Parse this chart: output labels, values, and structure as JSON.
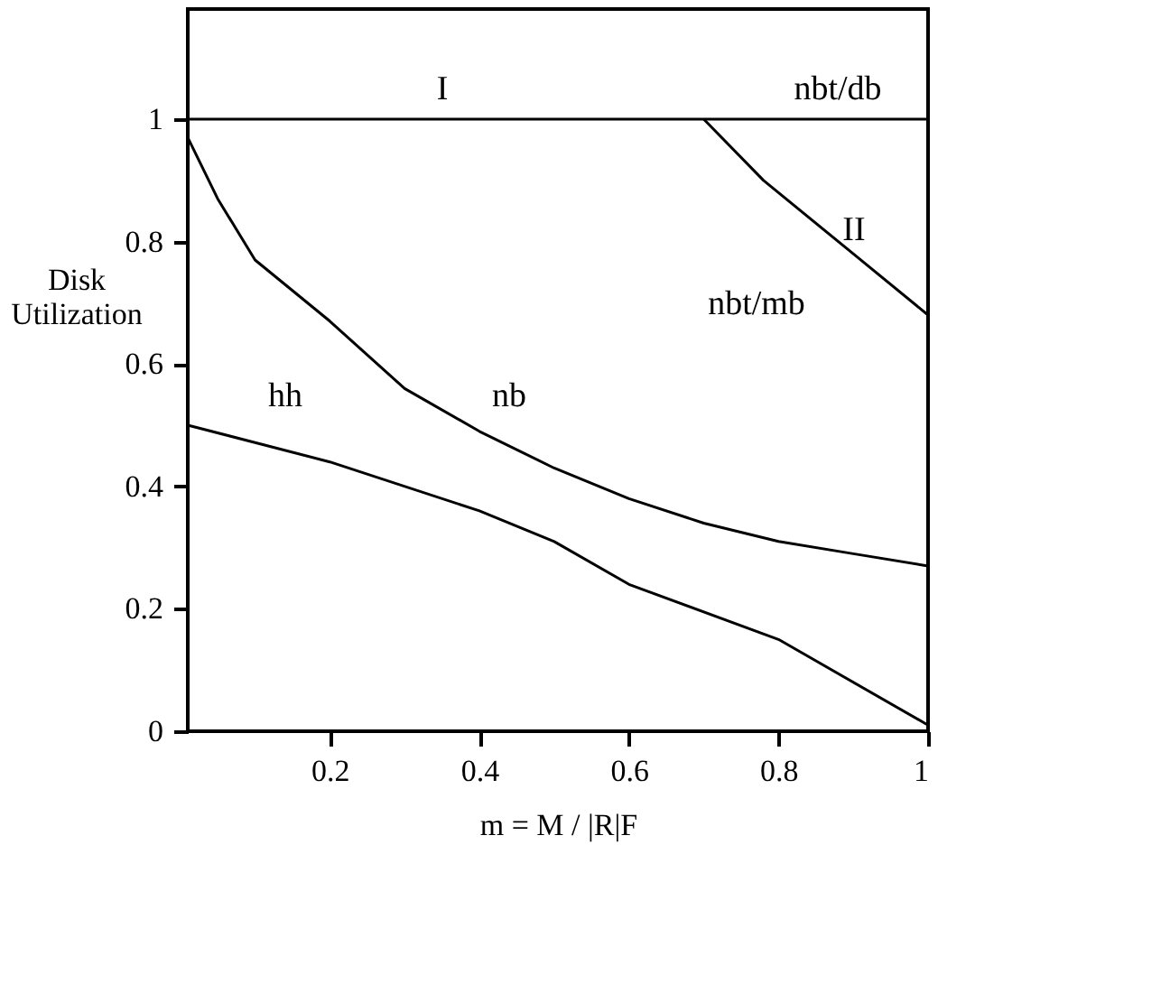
{
  "chart_data": {
    "type": "line",
    "xlabel": "m = M / |R|F",
    "ylabel": "Disk Utilization",
    "series": [
      {
        "name": "I",
        "color": "#000000",
        "x": [
          0.01,
          1
        ],
        "values": [
          1,
          1
        ]
      },
      {
        "name": "II",
        "color": "#000000",
        "x": [
          0.7,
          0.78,
          0.9,
          1
        ],
        "values": [
          1,
          0.9,
          0.78,
          0.68
        ]
      },
      {
        "name": "nb",
        "color": "#000000",
        "x": [
          0.01,
          0.05,
          0.1,
          0.2,
          0.3,
          0.4,
          0.5,
          0.6,
          0.7,
          0.8,
          0.9,
          1
        ],
        "values": [
          0.97,
          0.87,
          0.77,
          0.67,
          0.56,
          0.49,
          0.43,
          0.38,
          0.34,
          0.31,
          0.29,
          0.27
        ]
      },
      {
        "name": "hh",
        "color": "#000000",
        "x": [
          0.01,
          0.2,
          0.4,
          0.5,
          0.6,
          0.8,
          1
        ],
        "values": [
          0.5,
          0.44,
          0.36,
          0.31,
          0.24,
          0.15,
          0.01
        ]
      }
    ],
    "annotations": [
      "nbt/db",
      "nbt/mb"
    ],
    "xlim": [
      0.01,
      1
    ],
    "xticks": [
      0.2,
      0.4,
      0.6,
      0.8,
      1
    ],
    "ylim": [
      0,
      1.18
    ],
    "yticks": [
      0,
      0.2,
      0.4,
      0.6,
      0.8,
      1
    ],
    "grid": false,
    "legend": false,
    "marker": "none",
    "line_style": "solid"
  }
}
